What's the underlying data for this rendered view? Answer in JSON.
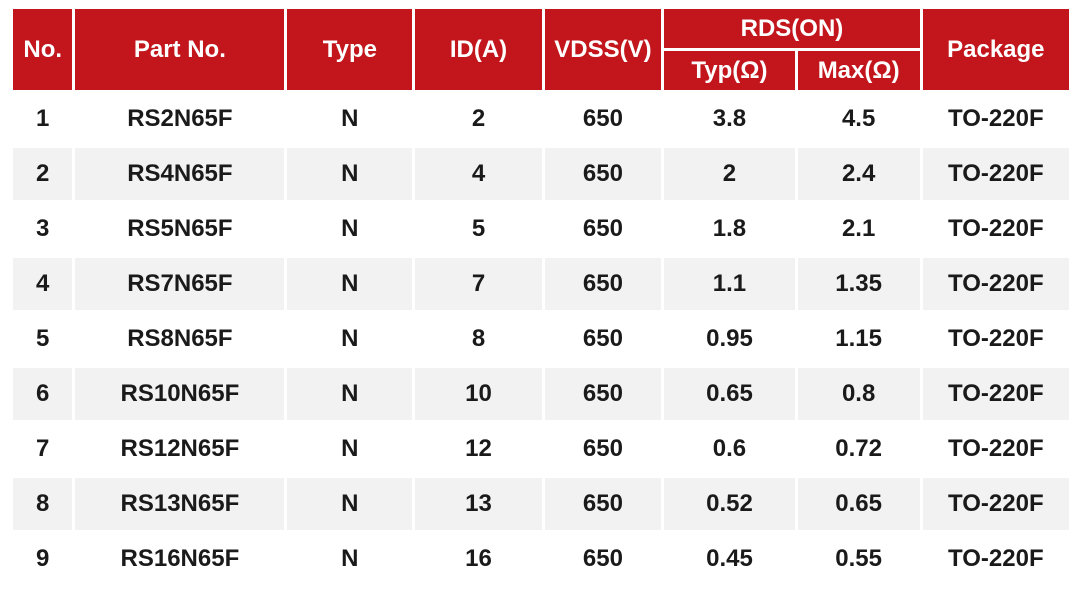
{
  "colors": {
    "header_bg": "#c2151c",
    "header_text": "#ffffff",
    "row_bg": "#ffffff",
    "row_alt_bg": "#f2f2f2",
    "body_text": "#1a1a1a",
    "separator": "#ffffff"
  },
  "table": {
    "headers": {
      "no": "No.",
      "part_no": "Part No.",
      "type": "Type",
      "id_a": "ID(A)",
      "vdss": "VDSS(V)",
      "rds_on": "RDS(ON)",
      "typ": "Typ(Ω)",
      "max": "Max(Ω)",
      "package": "Package"
    },
    "rows": [
      {
        "no": "1",
        "part": "RS2N65F",
        "type": "N",
        "id": "2",
        "vdss": "650",
        "rds_typ": "3.8",
        "rds_max": "4.5",
        "pkg": "TO-220F"
      },
      {
        "no": "2",
        "part": "RS4N65F",
        "type": "N",
        "id": "4",
        "vdss": "650",
        "rds_typ": "2",
        "rds_max": "2.4",
        "pkg": "TO-220F"
      },
      {
        "no": "3",
        "part": "RS5N65F",
        "type": "N",
        "id": "5",
        "vdss": "650",
        "rds_typ": "1.8",
        "rds_max": "2.1",
        "pkg": "TO-220F"
      },
      {
        "no": "4",
        "part": "RS7N65F",
        "type": "N",
        "id": "7",
        "vdss": "650",
        "rds_typ": "1.1",
        "rds_max": "1.35",
        "pkg": "TO-220F"
      },
      {
        "no": "5",
        "part": "RS8N65F",
        "type": "N",
        "id": "8",
        "vdss": "650",
        "rds_typ": "0.95",
        "rds_max": "1.15",
        "pkg": "TO-220F"
      },
      {
        "no": "6",
        "part": "RS10N65F",
        "type": "N",
        "id": "10",
        "vdss": "650",
        "rds_typ": "0.65",
        "rds_max": "0.8",
        "pkg": "TO-220F"
      },
      {
        "no": "7",
        "part": "RS12N65F",
        "type": "N",
        "id": "12",
        "vdss": "650",
        "rds_typ": "0.6",
        "rds_max": "0.72",
        "pkg": "TO-220F"
      },
      {
        "no": "8",
        "part": "RS13N65F",
        "type": "N",
        "id": "13",
        "vdss": "650",
        "rds_typ": "0.52",
        "rds_max": "0.65",
        "pkg": "TO-220F"
      },
      {
        "no": "9",
        "part": "RS16N65F",
        "type": "N",
        "id": "16",
        "vdss": "650",
        "rds_typ": "0.45",
        "rds_max": "0.55",
        "pkg": "TO-220F"
      }
    ]
  },
  "chart_data": {
    "type": "table",
    "title": "",
    "columns": [
      "No.",
      "Part No.",
      "Type",
      "ID(A)",
      "VDSS(V)",
      "RDS(ON) Typ(Ω)",
      "RDS(ON) Max(Ω)",
      "Package"
    ],
    "rows": [
      [
        "1",
        "RS2N65F",
        "N",
        "2",
        "650",
        "3.8",
        "4.5",
        "TO-220F"
      ],
      [
        "2",
        "RS4N65F",
        "N",
        "4",
        "650",
        "2",
        "2.4",
        "TO-220F"
      ],
      [
        "3",
        "RS5N65F",
        "N",
        "5",
        "650",
        "1.8",
        "2.1",
        "TO-220F"
      ],
      [
        "4",
        "RS7N65F",
        "N",
        "7",
        "650",
        "1.1",
        "1.35",
        "TO-220F"
      ],
      [
        "5",
        "RS8N65F",
        "N",
        "8",
        "650",
        "0.95",
        "1.15",
        "TO-220F"
      ],
      [
        "6",
        "RS10N65F",
        "N",
        "10",
        "650",
        "0.65",
        "0.8",
        "TO-220F"
      ],
      [
        "7",
        "RS12N65F",
        "N",
        "12",
        "650",
        "0.6",
        "0.72",
        "TO-220F"
      ],
      [
        "8",
        "RS13N65F",
        "N",
        "13",
        "650",
        "0.52",
        "0.65",
        "TO-220F"
      ],
      [
        "9",
        "RS16N65F",
        "N",
        "16",
        "650",
        "0.45",
        "0.55",
        "TO-220F"
      ]
    ]
  }
}
